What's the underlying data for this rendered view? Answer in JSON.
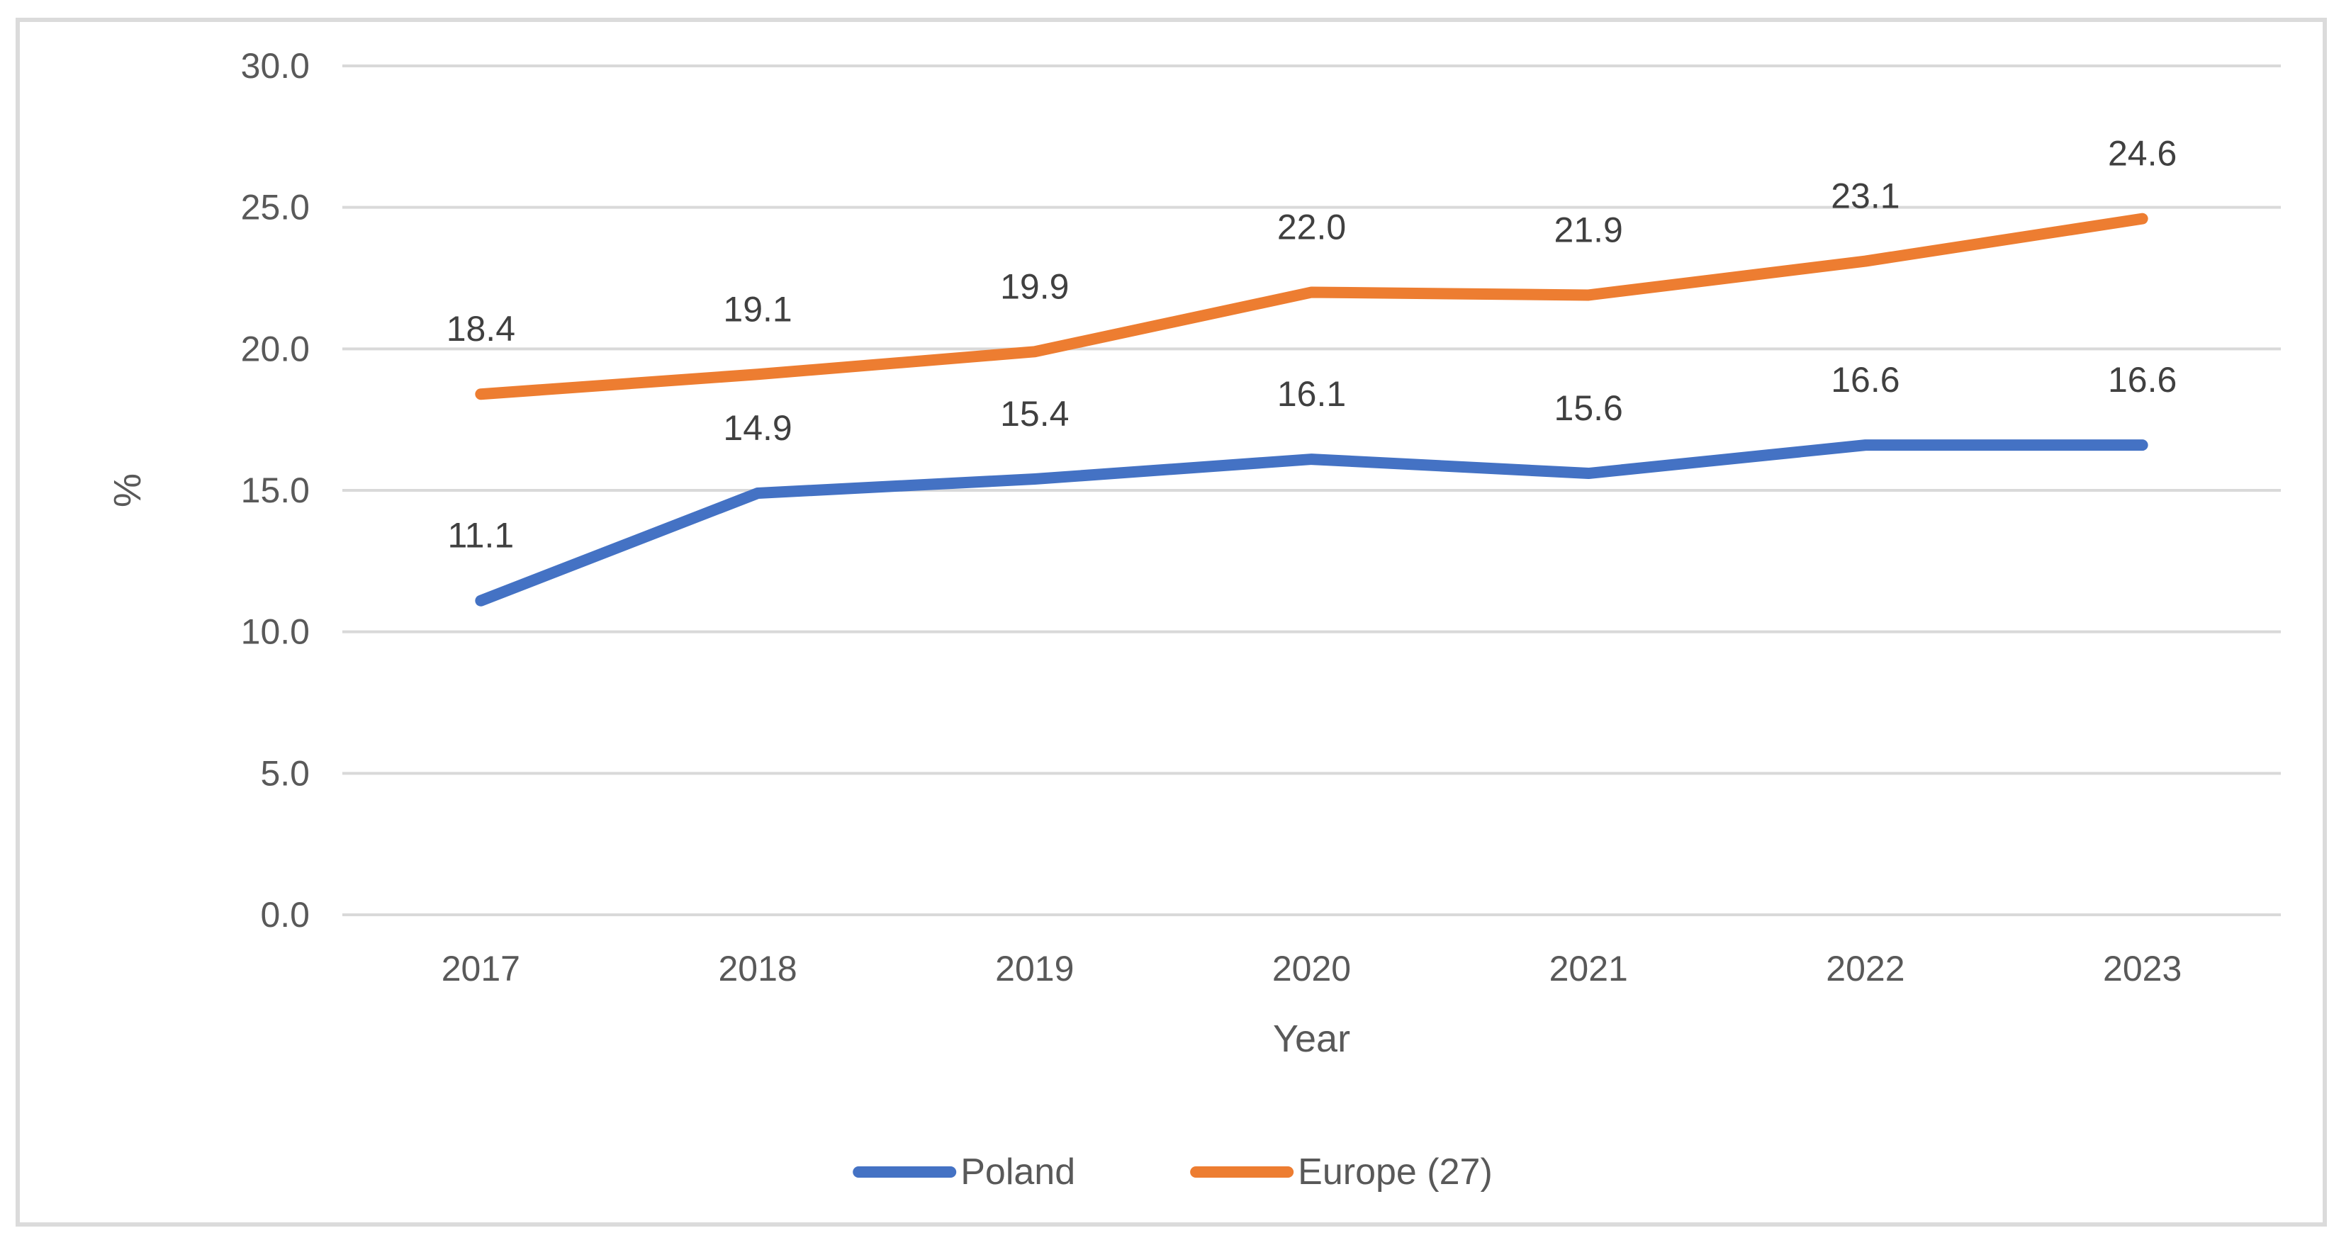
{
  "chart_data": {
    "type": "line",
    "title": "",
    "xlabel": "Year",
    "ylabel": "%",
    "categories": [
      "2017",
      "2018",
      "2019",
      "2020",
      "2021",
      "2022",
      "2023"
    ],
    "series": [
      {
        "name": "Poland",
        "color": "#4472C4",
        "values": [
          11.1,
          14.9,
          15.4,
          16.1,
          15.6,
          16.6,
          16.6
        ]
      },
      {
        "name": "Europe (27)",
        "color": "#ED7D31",
        "values": [
          18.4,
          19.1,
          19.9,
          22.0,
          21.9,
          23.1,
          24.6
        ]
      }
    ],
    "ylim": [
      0.0,
      30.0
    ],
    "ytick_step": 5.0,
    "yticks": [
      {
        "value": 0,
        "label": "0.0"
      },
      {
        "value": 5,
        "label": "5.0"
      },
      {
        "value": 10,
        "label": "10.0"
      },
      {
        "value": 15,
        "label": "15.0"
      },
      {
        "value": 20,
        "label": "20.0"
      },
      {
        "value": 25,
        "label": "25.0"
      },
      {
        "value": 30,
        "label": "30.0"
      }
    ],
    "grid": true,
    "data_labels": true,
    "legend_position": "bottom"
  },
  "colors": {
    "grid": "#D9D9D9",
    "frame_border": "#DBDBDB",
    "tick_text": "#595959",
    "axis_title_text": "#595959",
    "legend_text": "#595959",
    "data_label_text": "#404040",
    "background": "#FFFFFF"
  }
}
